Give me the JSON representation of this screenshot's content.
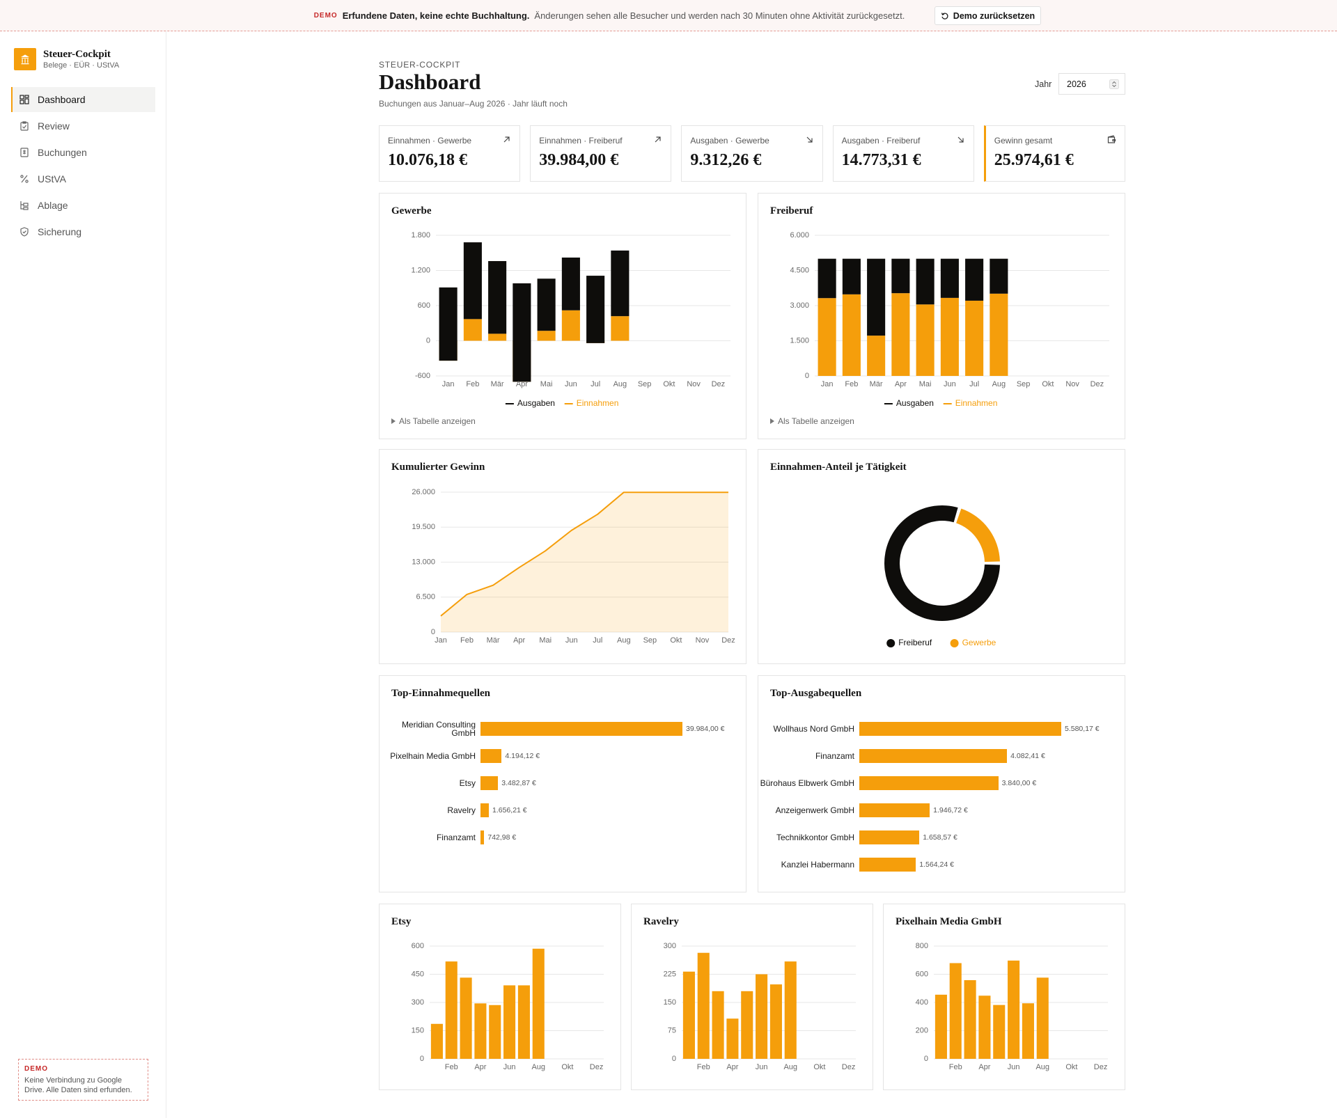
{
  "banner": {
    "tag": "DEMO",
    "headline": "Erfundene Daten, keine echte Buchhaltung.",
    "text": "Änderungen sehen alle Besucher und werden nach 30 Minuten ohne Aktivität zurückgesetzt.",
    "button": "Demo zurücksetzen"
  },
  "sidebar": {
    "brand": "Steuer-Cockpit",
    "tagline": "Belege · EÜR · UStVA",
    "nav": [
      "Dashboard",
      "Review",
      "Buchungen",
      "UStVA",
      "Ablage",
      "Sicherung"
    ],
    "demo_tag": "DEMO",
    "demo_text": "Keine Verbindung zu Google Drive. Alle Daten sind erfunden."
  },
  "header": {
    "eyebrow": "STEUER-COCKPIT",
    "title": "Dashboard",
    "subtitle": "Buchungen aus Januar–Aug 2026 · Jahr läuft noch",
    "year_label": "Jahr",
    "year": "2026"
  },
  "kpis": [
    {
      "label": "Einnahmen · Gewerbe",
      "value": "10.076,18 €"
    },
    {
      "label": "Einnahmen · Freiberuf",
      "value": "39.984,00 €"
    },
    {
      "label": "Ausgaben · Gewerbe",
      "value": "9.312,26 €"
    },
    {
      "label": "Ausgaben · Freiberuf",
      "value": "14.773,31 €"
    },
    {
      "label": "Gewinn gesamt",
      "value": "25.974,61 €"
    }
  ],
  "chart_data": [
    {
      "type": "bar",
      "stacked": true,
      "title": "Gewerbe",
      "categories": [
        "Jan",
        "Feb",
        "Mär",
        "Apr",
        "Mai",
        "Jun",
        "Jul",
        "Aug",
        "Sep",
        "Okt",
        "Nov",
        "Dez"
      ],
      "series": [
        {
          "name": "Ausgaben",
          "color": "#0e0d0b",
          "values": [
            1250,
            1310,
            1240,
            1680,
            890,
            900,
            1150,
            1120,
            null,
            null,
            null,
            null
          ]
        },
        {
          "name": "Einnahmen",
          "color": "#f59e0b",
          "values": [
            -340,
            370,
            120,
            -700,
            170,
            520,
            -40,
            420,
            null,
            null,
            null,
            null
          ]
        }
      ],
      "ylim": [
        -600,
        1800
      ],
      "yticks": [
        -600,
        0,
        600,
        {
          "value": 1200,
          "label": "1.200"
        },
        {
          "value": 1800,
          "label": "1.800"
        }
      ],
      "grid": true,
      "legend": "bottom",
      "table_toggle": "Als Tabelle anzeigen"
    },
    {
      "type": "bar",
      "stacked": true,
      "title": "Freiberuf",
      "categories": [
        "Jan",
        "Feb",
        "Mär",
        "Apr",
        "Mai",
        "Jun",
        "Jul",
        "Aug",
        "Sep",
        "Okt",
        "Nov",
        "Dez"
      ],
      "series": [
        {
          "name": "Ausgaben",
          "color": "#0e0d0b",
          "values": [
            1680,
            1520,
            3280,
            1470,
            1950,
            1670,
            1790,
            1490,
            null,
            null,
            null,
            null
          ]
        },
        {
          "name": "Einnahmen",
          "color": "#f59e0b",
          "values": [
            3320,
            3480,
            1720,
            3530,
            3050,
            3330,
            3210,
            3510,
            null,
            null,
            null,
            null
          ]
        }
      ],
      "ylim": [
        0,
        6000
      ],
      "yticks": [
        0,
        {
          "value": 1500,
          "label": "1.500"
        },
        {
          "value": 3000,
          "label": "3.000"
        },
        {
          "value": 4500,
          "label": "4.500"
        },
        {
          "value": 6000,
          "label": "6.000"
        }
      ],
      "grid": true,
      "legend": "bottom",
      "table_toggle": "Als Tabelle anzeigen"
    },
    {
      "type": "area",
      "title": "Kumulierter Gewinn",
      "categories": [
        "Jan",
        "Feb",
        "Mär",
        "Apr",
        "Mai",
        "Jun",
        "Jul",
        "Aug",
        "Sep",
        "Okt",
        "Nov",
        "Dez"
      ],
      "values": [
        3000,
        7000,
        8700,
        12000,
        15100,
        18900,
        21900,
        25975,
        25975,
        25975,
        25975,
        25975
      ],
      "color": "#f59e0b",
      "ylim": [
        0,
        26000
      ],
      "yticks": [
        0,
        {
          "value": 6500,
          "label": "6.500"
        },
        {
          "value": 13000,
          "label": "13.000"
        },
        {
          "value": 19500,
          "label": "19.500"
        },
        {
          "value": 26000,
          "label": "26.000"
        }
      ],
      "grid": true
    },
    {
      "type": "pie",
      "donut": true,
      "title": "Einnahmen-Anteil je Tätigkeit",
      "categories": [
        "Freiberuf",
        "Gewerbe"
      ],
      "values": [
        39984,
        10076.18
      ],
      "colors": [
        "#0e0d0b",
        "#f59e0b"
      ],
      "legend": "bottom"
    },
    {
      "type": "barh",
      "title": "Top-Einnahmequellen",
      "categories": [
        "Meridian Consulting GmbH",
        "Pixelhain Media GmbH",
        "Etsy",
        "Ravelry",
        "Finanzamt"
      ],
      "values": [
        39984,
        4194.12,
        3482.87,
        1656.21,
        742.98
      ],
      "value_labels": [
        "39.984,00 €",
        "4.194,12 €",
        "3.482,87 €",
        "1.656,21 €",
        "742,98 €"
      ],
      "color": "#f59e0b"
    },
    {
      "type": "barh",
      "title": "Top-Ausgabequellen",
      "categories": [
        "Wollhaus Nord GmbH",
        "Finanzamt",
        "Bürohaus Elbwerk GmbH",
        "Anzeigenwerk GmbH",
        "Technikkontor GmbH",
        "Kanzlei Habermann"
      ],
      "values": [
        5580.17,
        4082.41,
        3840,
        1946.72,
        1658.57,
        1564.24
      ],
      "value_labels": [
        "5.580,17 €",
        "4.082,41 €",
        "3.840,00 €",
        "1.946,72 €",
        "1.658,57 €",
        "1.564,24 €"
      ],
      "color": "#f59e0b"
    },
    {
      "type": "bar",
      "title": "Etsy",
      "categories": [
        null,
        "Feb",
        null,
        "Apr",
        null,
        "Jun",
        null,
        "Aug",
        null,
        "Okt",
        null,
        "Dez"
      ],
      "values": [
        186,
        518,
        432,
        295,
        286,
        391,
        391,
        586,
        null,
        null,
        null,
        null
      ],
      "color": "#f59e0b",
      "ylim": [
        0,
        600
      ],
      "yticks": [
        0,
        150,
        300,
        450,
        600
      ],
      "grid": true
    },
    {
      "type": "bar",
      "title": "Ravelry",
      "categories": [
        null,
        "Feb",
        null,
        "Apr",
        null,
        "Jun",
        null,
        "Aug",
        null,
        "Okt",
        null,
        "Dez"
      ],
      "values": [
        232,
        282,
        180,
        107,
        180,
        225,
        198,
        259,
        null,
        null,
        null,
        null
      ],
      "color": "#f59e0b",
      "ylim": [
        0,
        300
      ],
      "yticks": [
        0,
        75,
        150,
        225,
        300
      ],
      "grid": true
    },
    {
      "type": "bar",
      "title": "Pixelhain Media GmbH",
      "categories": [
        null,
        "Feb",
        null,
        "Apr",
        null,
        "Jun",
        null,
        "Aug",
        null,
        "Okt",
        null,
        "Dez"
      ],
      "values": [
        455,
        679,
        558,
        448,
        382,
        697,
        394,
        576,
        null,
        null,
        null,
        null
      ],
      "color": "#f59e0b",
      "ylim": [
        0,
        800
      ],
      "yticks": [
        0,
        200,
        400,
        600,
        800
      ],
      "grid": true
    }
  ]
}
